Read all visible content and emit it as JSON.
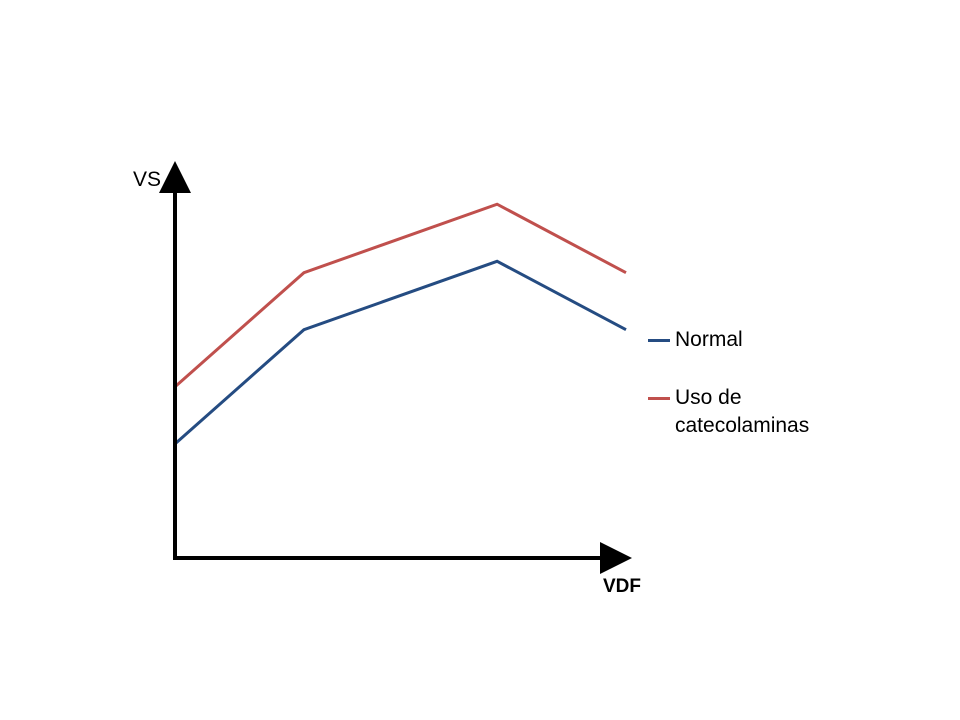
{
  "chart_data": {
    "type": "line",
    "title": "",
    "xlabel": "VDF",
    "ylabel": "VS",
    "x": [
      0,
      1,
      2.5,
      3.5
    ],
    "series": [
      {
        "name": "Normal",
        "color": "#254C82",
        "values": [
          1.0,
          3.0,
          4.2,
          3.0
        ]
      },
      {
        "name": "Uso de catecolaminas",
        "color": "#C0504D",
        "values": [
          2.0,
          4.0,
          5.2,
          4.0
        ]
      }
    ],
    "xlim": [
      0,
      3.5
    ],
    "ylim": [
      -1.0,
      6.5
    ],
    "grid": false,
    "legend_position": "right"
  }
}
